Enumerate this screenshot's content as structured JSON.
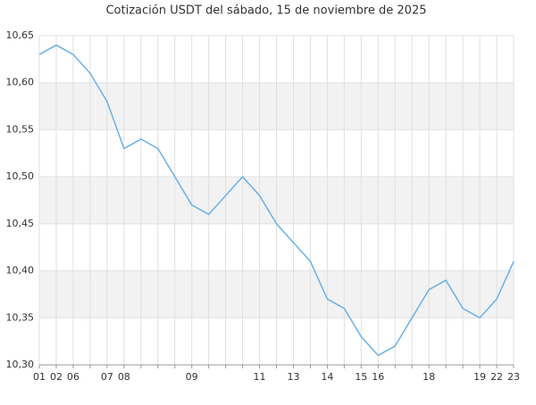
{
  "chart_data": {
    "type": "line",
    "title": "Cotización USDT del sábado, 15 de noviembre de 2025",
    "categories": [
      "01",
      "02",
      "06",
      null,
      "07",
      "08",
      null,
      null,
      null,
      "09",
      null,
      null,
      null,
      "11",
      null,
      "13",
      null,
      "14",
      null,
      "15",
      "16",
      null,
      null,
      "18",
      null,
      null,
      "19",
      "22",
      "23"
    ],
    "series": [
      {
        "name": "USDT",
        "color": "#6ab0ea",
        "values": [
          10.63,
          10.64,
          10.63,
          10.61,
          10.58,
          10.53,
          10.54,
          10.53,
          10.5,
          10.47,
          10.46,
          10.48,
          10.5,
          10.48,
          10.45,
          10.43,
          10.41,
          10.37,
          10.36,
          10.33,
          10.31,
          10.32,
          10.35,
          10.38,
          10.39,
          10.36,
          10.35,
          10.37,
          10.41
        ]
      }
    ],
    "ylim": [
      10.3,
      10.65
    ],
    "yticks": [
      {
        "value": 10.3,
        "label": "10,30"
      },
      {
        "value": 10.35,
        "label": "10,35"
      },
      {
        "value": 10.4,
        "label": "10,40"
      },
      {
        "value": 10.45,
        "label": "10,45"
      },
      {
        "value": 10.5,
        "label": "10,50"
      },
      {
        "value": 10.55,
        "label": "10,55"
      },
      {
        "value": 10.6,
        "label": "10,60"
      },
      {
        "value": 10.65,
        "label": "10,65"
      }
    ],
    "grid": true
  }
}
